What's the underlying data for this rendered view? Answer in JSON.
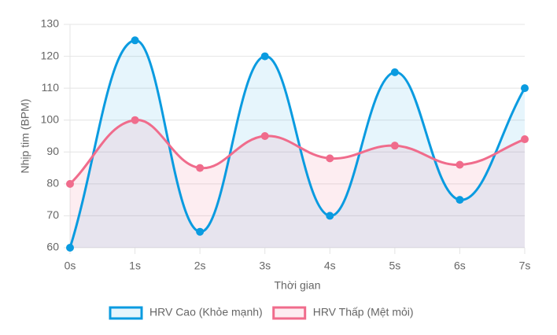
{
  "chart_data": {
    "type": "line",
    "x_label": "Thời gian",
    "y_label": "Nhịp tim (BPM)",
    "categories": [
      "0s",
      "1s",
      "2s",
      "3s",
      "4s",
      "5s",
      "6s",
      "7s"
    ],
    "series": [
      {
        "name": "HRV Cao (Khỏe mạnh)",
        "color": "#0a9be0",
        "fill": "rgba(10,155,224,0.1)",
        "values": [
          60,
          125,
          65,
          120,
          70,
          115,
          75,
          110
        ]
      },
      {
        "name": "HRV Thấp (Mệt mỏi)",
        "color": "#f06c8c",
        "fill": "rgba(240,108,140,0.12)",
        "values": [
          80,
          100,
          85,
          95,
          88,
          92,
          86,
          94
        ]
      }
    ],
    "ylim": [
      60,
      130
    ],
    "yticks": [
      60,
      70,
      80,
      90,
      100,
      110,
      120,
      130
    ],
    "grid": true,
    "legend": "bottom"
  }
}
